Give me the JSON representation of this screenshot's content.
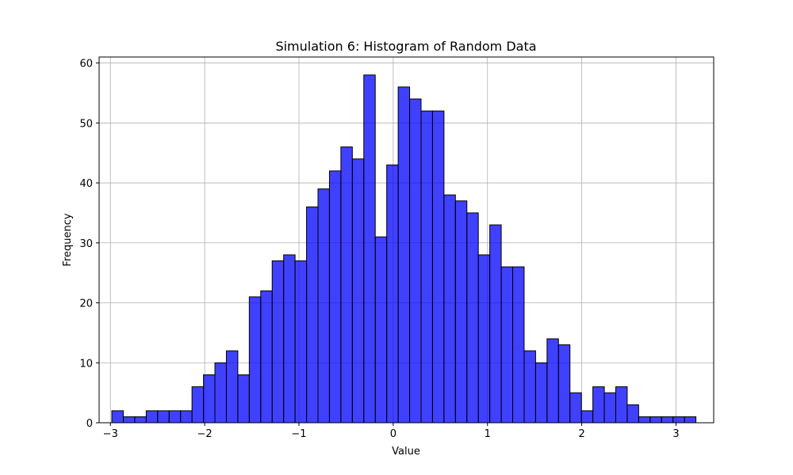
{
  "chart_data": {
    "type": "bar",
    "title": "Simulation 6: Histogram of Random Data",
    "xlabel": "Value",
    "ylabel": "Frequency",
    "xlim": [
      -3.12,
      3.4
    ],
    "ylim": [
      0,
      61
    ],
    "grid": true,
    "bin_start": -2.985,
    "bin_width": 0.1215,
    "values": [
      2,
      1,
      1,
      2,
      2,
      2,
      2,
      6,
      8,
      10,
      12,
      8,
      21,
      22,
      27,
      28,
      27,
      36,
      39,
      42,
      46,
      44,
      58,
      31,
      43,
      56,
      54,
      52,
      52,
      38,
      37,
      35,
      28,
      33,
      26,
      26,
      12,
      10,
      14,
      13,
      5,
      2,
      6,
      5,
      6,
      3,
      1,
      1,
      1,
      1,
      1
    ],
    "bar_color": "#0000ff",
    "bar_opacity": 0.75,
    "edge_color": "#000000",
    "x_ticks": [
      -3,
      -2,
      -1,
      0,
      1,
      2,
      3
    ],
    "x_tick_labels": [
      "−3",
      "−2",
      "−1",
      "0",
      "1",
      "2",
      "3"
    ],
    "y_ticks": [
      0,
      10,
      20,
      30,
      40,
      50,
      60
    ],
    "y_tick_labels": [
      "0",
      "10",
      "20",
      "30",
      "40",
      "50",
      "60"
    ]
  }
}
